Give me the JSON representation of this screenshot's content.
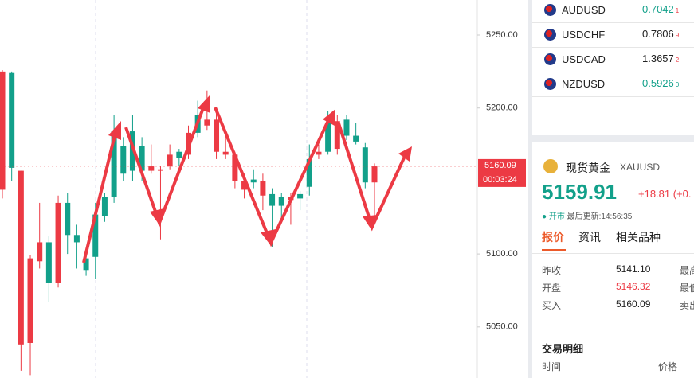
{
  "chart_data": {
    "type": "candlestick",
    "ylim": [
      5015,
      5274
    ],
    "yticks": [
      {
        "value": 5050,
        "label": "5050.00"
      },
      {
        "value": 5100,
        "label": "5100.00"
      },
      {
        "value": 5200,
        "label": "5200.00"
      },
      {
        "value": 5250,
        "label": "5250.00"
      }
    ],
    "up_color": "#12a08a",
    "down_color": "#ec3a44",
    "open": [
      5225,
      5159,
      5157,
      5097,
      5108,
      5080,
      5135,
      5113,
      5108,
      5089,
      5098,
      5126,
      5139,
      5155,
      5157,
      5157,
      5160,
      5158,
      5168,
      5166,
      5183,
      5183,
      5192,
      5192,
      5170,
      5168,
      5150,
      5149,
      5150,
      5133,
      5133,
      5139,
      5138,
      5146,
      5170,
      5170,
      5191,
      5181,
      5177,
      5149,
      5160
    ],
    "high": [
      5226,
      5225,
      5157,
      5099,
      5135,
      5112,
      5140,
      5142,
      5120,
      5100,
      5135,
      5142,
      5195,
      5180,
      5195,
      5180,
      5175,
      5160,
      5175,
      5172,
      5188,
      5205,
      5212,
      5198,
      5180,
      5170,
      5155,
      5158,
      5155,
      5145,
      5142,
      5142,
      5143,
      5175,
      5175,
      5198,
      5195,
      5195,
      5190,
      5176,
      5162
    ],
    "low": [
      5138,
      5150,
      5020,
      5017,
      5090,
      5067,
      5077,
      5100,
      5090,
      5085,
      5083,
      5122,
      5135,
      5150,
      5150,
      5150,
      5155,
      5110,
      5158,
      5160,
      5165,
      5180,
      5185,
      5165,
      5165,
      5145,
      5138,
      5145,
      5130,
      5105,
      5125,
      5120,
      5130,
      5140,
      5165,
      5168,
      5168,
      5178,
      5175,
      5145,
      5120
    ],
    "close": [
      5144,
      5224,
      5038,
      5039,
      5095,
      5108,
      5080,
      5135,
      5113,
      5097,
      5127,
      5139,
      5184,
      5174,
      5184,
      5174,
      5157,
      5157,
      5160,
      5170,
      5168,
      5195,
      5188,
      5170,
      5168,
      5150,
      5144,
      5151,
      5140,
      5141,
      5139,
      5137,
      5141,
      5165,
      5168,
      5190,
      5172,
      5192,
      5181,
      5173,
      5149
    ],
    "last_price": {
      "value": 5160.09,
      "label": "5160.09"
    },
    "countdown": "00:03:24"
  },
  "watchlist": [
    {
      "symbol": "AUDUSD",
      "price": "0.7042",
      "tail": "1"
    },
    {
      "symbol": "USDCHF",
      "price": "0.7806",
      "tail": "9"
    },
    {
      "symbol": "USDCAD",
      "price": "1.3657",
      "tail": "2"
    },
    {
      "symbol": "NZDUSD",
      "price": "0.5926",
      "tail": "0"
    }
  ],
  "quote": {
    "name": "现货黄金",
    "code": "XAUUSD",
    "price": "5159.91",
    "change": "+18.81",
    "change_pct": "(+0.",
    "status": "开市",
    "updated": "最后更新:14:56:35",
    "tabs": [
      "报价",
      "资讯",
      "相关品种"
    ],
    "rows": [
      [
        "昨收",
        "5141.10",
        "最高"
      ],
      [
        "开盘",
        "5146.32",
        "最低"
      ],
      [
        "买入",
        "5160.09",
        "卖出"
      ]
    ],
    "trades_title": "交易明细",
    "trades_headers": [
      "时间",
      "价格"
    ]
  }
}
